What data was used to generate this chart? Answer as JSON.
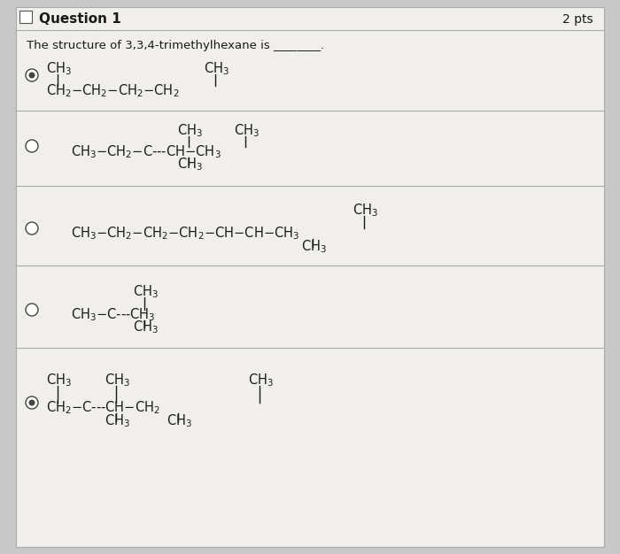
{
  "bg_color": "#c8c8c8",
  "card_color": "#f0efec",
  "text_color": "#1a1a1a",
  "divider_color": "#aaaaaa",
  "title": "Question 1",
  "pts": "2 pts",
  "subtitle": "The structure of 3,3,4-trimethylhexane is ________.",
  "fs": 10.5,
  "fs_small": 9.5,
  "options": [
    {
      "filled": true
    },
    {
      "filled": false
    },
    {
      "filled": false
    },
    {
      "filled": false
    },
    {
      "filled": true
    }
  ]
}
